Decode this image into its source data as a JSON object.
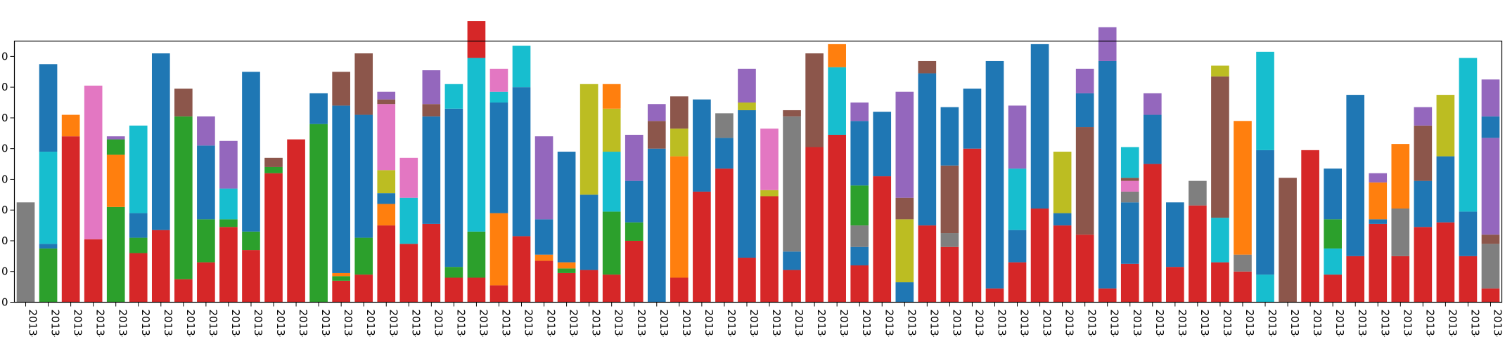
{
  "chart_data": {
    "type": "bar",
    "stacked": true,
    "ylim": [
      0,
      85
    ],
    "yticks": [
      0,
      10,
      20,
      30,
      40,
      50,
      60,
      70,
      80
    ],
    "ytick_labels_visible": [
      "0",
      "0",
      "0",
      "0",
      "0",
      "0",
      "0",
      "0",
      "0"
    ],
    "xtick_label": "2013-",
    "grid": false,
    "legend": "none",
    "colors": {
      "red": "#d62728",
      "blue": "#1f77b4",
      "green": "#2ca02c",
      "orange": "#ff7f0e",
      "brown": "#8c564b",
      "purple": "#9467bd",
      "pink": "#e377c2",
      "gray": "#7f7f7f",
      "olive": "#bcbd22",
      "cyan": "#17becf"
    },
    "bars": [
      [
        [
          "gray",
          32.5
        ]
      ],
      [
        [
          "green",
          17.5
        ],
        [
          "blue",
          1.5
        ],
        [
          "cyan",
          30
        ],
        [
          "blue",
          28.5
        ]
      ],
      [
        [
          "red",
          54
        ],
        [
          "orange",
          7
        ]
      ],
      [
        [
          "red",
          20.5
        ],
        [
          "pink",
          50
        ]
      ],
      [
        [
          "green",
          31
        ],
        [
          "orange",
          17
        ],
        [
          "green",
          5
        ],
        [
          "purple",
          1
        ]
      ],
      [
        [
          "red",
          16
        ],
        [
          "green",
          5
        ],
        [
          "blue",
          8
        ],
        [
          "cyan",
          28.5
        ]
      ],
      [
        [
          "red",
          23.5
        ],
        [
          "blue",
          57.5
        ]
      ],
      [
        [
          "red",
          7.5
        ],
        [
          "green",
          53
        ],
        [
          "brown",
          9
        ]
      ],
      [
        [
          "red",
          13
        ],
        [
          "green",
          14
        ],
        [
          "blue",
          24
        ],
        [
          "purple",
          9.5
        ]
      ],
      [
        [
          "red",
          24.5
        ],
        [
          "green",
          2.5
        ],
        [
          "cyan",
          10
        ],
        [
          "purple",
          15.5
        ]
      ],
      [
        [
          "red",
          17
        ],
        [
          "green",
          6
        ],
        [
          "blue",
          52
        ]
      ],
      [
        [
          "red",
          42
        ],
        [
          "green",
          2
        ],
        [
          "brown",
          3
        ]
      ],
      [
        [
          "red",
          53
        ]
      ],
      [
        [
          "green",
          58
        ],
        [
          "blue",
          10
        ]
      ],
      [
        [
          "red",
          7
        ],
        [
          "green",
          1.5
        ],
        [
          "orange",
          1
        ],
        [
          "blue",
          54.5
        ],
        [
          "brown",
          11
        ]
      ],
      [
        [
          "red",
          9
        ],
        [
          "green",
          12
        ],
        [
          "blue",
          40
        ],
        [
          "brown",
          20
        ]
      ],
      [
        [
          "red",
          25
        ],
        [
          "orange",
          7
        ],
        [
          "blue",
          3.5
        ],
        [
          "olive",
          7.5
        ],
        [
          "pink",
          21.5
        ],
        [
          "brown",
          1.5
        ],
        [
          "purple",
          2.5
        ]
      ],
      [
        [
          "red",
          19
        ],
        [
          "cyan",
          15
        ],
        [
          "pink",
          13
        ]
      ],
      [
        [
          "red",
          25.5
        ],
        [
          "blue",
          35
        ],
        [
          "brown",
          4
        ],
        [
          "purple",
          11
        ]
      ],
      [
        [
          "red",
          8
        ],
        [
          "green",
          3.5
        ],
        [
          "blue",
          51.5
        ],
        [
          "cyan",
          8
        ]
      ],
      [
        [
          "red",
          8
        ],
        [
          "green",
          15
        ],
        [
          "cyan",
          56.5
        ],
        [
          "red",
          12
        ]
      ],
      [
        [
          "red",
          5.5
        ],
        [
          "orange",
          23.5
        ],
        [
          "blue",
          36
        ],
        [
          "cyan",
          3.5
        ],
        [
          "pink",
          7.5
        ]
      ],
      [
        [
          "red",
          21.5
        ],
        [
          "blue",
          48.5
        ],
        [
          "cyan",
          13.5
        ]
      ],
      [
        [
          "red",
          13.5
        ],
        [
          "orange",
          2
        ],
        [
          "blue",
          11.5
        ],
        [
          "purple",
          27
        ]
      ],
      [
        [
          "red",
          9.5
        ],
        [
          "green",
          1.5
        ],
        [
          "orange",
          2
        ],
        [
          "blue",
          36
        ]
      ],
      [
        [
          "red",
          10.5
        ],
        [
          "blue",
          24.5
        ],
        [
          "olive",
          36
        ]
      ],
      [
        [
          "red",
          9
        ],
        [
          "green",
          20.5
        ],
        [
          "cyan",
          19.5
        ],
        [
          "olive",
          14
        ],
        [
          "orange",
          8
        ]
      ],
      [
        [
          "red",
          20
        ],
        [
          "green",
          6
        ],
        [
          "blue",
          13.5
        ],
        [
          "purple",
          15
        ]
      ],
      [
        [
          "blue",
          50
        ],
        [
          "brown",
          9
        ],
        [
          "purple",
          5.5
        ]
      ],
      [
        [
          "red",
          8
        ],
        [
          "orange",
          39.5
        ],
        [
          "olive",
          9
        ],
        [
          "brown",
          10.5
        ]
      ],
      [
        [
          "red",
          36
        ],
        [
          "blue",
          30
        ]
      ],
      [
        [
          "red",
          43.5
        ],
        [
          "blue",
          10
        ],
        [
          "gray",
          8
        ]
      ],
      [
        [
          "red",
          14.5
        ],
        [
          "blue",
          48
        ],
        [
          "olive",
          2.5
        ],
        [
          "purple",
          11
        ]
      ],
      [
        [
          "red",
          34.5
        ],
        [
          "olive",
          2
        ],
        [
          "pink",
          20
        ]
      ],
      [
        [
          "red",
          10.5
        ],
        [
          "blue",
          6
        ],
        [
          "gray",
          44
        ],
        [
          "brown",
          2
        ]
      ],
      [
        [
          "red",
          50.5
        ],
        [
          "brown",
          30.5
        ]
      ],
      [
        [
          "red",
          54.5
        ],
        [
          "cyan",
          22
        ],
        [
          "orange",
          7.5
        ]
      ],
      [
        [
          "red",
          12
        ],
        [
          "blue",
          6
        ],
        [
          "gray",
          7
        ],
        [
          "green",
          13
        ],
        [
          "blue",
          21
        ],
        [
          "purple",
          6
        ]
      ],
      [
        [
          "red",
          41
        ],
        [
          "blue",
          21
        ]
      ],
      [
        [
          "blue",
          6.5
        ],
        [
          "olive",
          20.5
        ],
        [
          "brown",
          7
        ],
        [
          "purple",
          34.5
        ]
      ],
      [
        [
          "red",
          25
        ],
        [
          "blue",
          49.5
        ],
        [
          "brown",
          4
        ]
      ],
      [
        [
          "red",
          18
        ],
        [
          "gray",
          4.5
        ],
        [
          "brown",
          22
        ],
        [
          "blue",
          19
        ]
      ],
      [
        [
          "red",
          50
        ],
        [
          "blue",
          19.5
        ]
      ],
      [
        [
          "red",
          4.5
        ],
        [
          "blue",
          74
        ]
      ],
      [
        [
          "red",
          13
        ],
        [
          "blue",
          10.5
        ],
        [
          "cyan",
          20
        ],
        [
          "purple",
          20.5
        ]
      ],
      [
        [
          "red",
          30.5
        ],
        [
          "blue",
          53.5
        ]
      ],
      [
        [
          "red",
          25
        ],
        [
          "blue",
          4
        ],
        [
          "olive",
          20
        ]
      ],
      [
        [
          "red",
          22
        ],
        [
          "brown",
          35
        ],
        [
          "blue",
          11
        ],
        [
          "purple",
          8
        ]
      ],
      [
        [
          "red",
          4.5
        ],
        [
          "blue",
          74
        ],
        [
          "purple",
          11
        ]
      ],
      [
        [
          "red",
          12.5
        ],
        [
          "blue",
          20
        ],
        [
          "gray",
          3.5
        ],
        [
          "pink",
          3.5
        ],
        [
          "brown",
          1
        ],
        [
          "cyan",
          10
        ]
      ],
      [
        [
          "red",
          45
        ],
        [
          "blue",
          16
        ],
        [
          "purple",
          7
        ]
      ],
      [
        [
          "red",
          11.5
        ],
        [
          "blue",
          21
        ]
      ],
      [
        [
          "red",
          31.5
        ],
        [
          "gray",
          8
        ]
      ],
      [
        [
          "red",
          13
        ],
        [
          "cyan",
          14.5
        ],
        [
          "brown",
          46
        ],
        [
          "olive",
          3.5
        ]
      ],
      [
        [
          "red",
          10
        ],
        [
          "gray",
          5.5
        ],
        [
          "orange",
          43.5
        ]
      ],
      [
        [
          "cyan",
          9
        ],
        [
          "blue",
          40.5
        ],
        [
          "cyan",
          32
        ]
      ],
      [
        [
          "brown",
          40.5
        ]
      ],
      [
        [
          "red",
          49.5
        ]
      ],
      [
        [
          "red",
          9
        ],
        [
          "cyan",
          8.5
        ],
        [
          "green",
          9.5
        ],
        [
          "blue",
          16.5
        ]
      ],
      [
        [
          "red",
          15
        ],
        [
          "blue",
          52.5
        ]
      ],
      [
        [
          "red",
          25.5
        ],
        [
          "blue",
          1.5
        ],
        [
          "orange",
          12
        ],
        [
          "purple",
          3
        ]
      ],
      [
        [
          "red",
          15
        ],
        [
          "gray",
          15.5
        ],
        [
          "orange",
          21
        ]
      ],
      [
        [
          "red",
          24.5
        ],
        [
          "blue",
          15
        ],
        [
          "brown",
          18
        ],
        [
          "purple",
          6
        ]
      ],
      [
        [
          "red",
          26
        ],
        [
          "blue",
          21.5
        ],
        [
          "olive",
          20
        ]
      ],
      [
        [
          "red",
          15
        ],
        [
          "blue",
          14.5
        ],
        [
          "cyan",
          50
        ]
      ],
      [
        [
          "red",
          4.5
        ],
        [
          "gray",
          14.5
        ],
        [
          "brown",
          3
        ],
        [
          "purple",
          31.5
        ],
        [
          "blue",
          7
        ],
        [
          "purple",
          12
        ]
      ]
    ]
  }
}
